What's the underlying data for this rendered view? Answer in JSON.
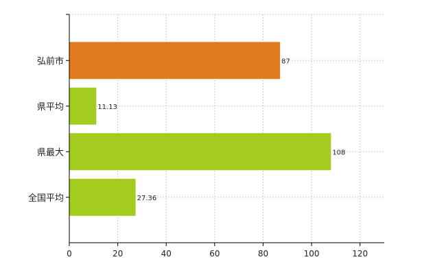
{
  "chart_data": {
    "type": "bar",
    "orientation": "horizontal",
    "categories": [
      "弘前市",
      "県平均",
      "県最大",
      "全国平均"
    ],
    "values": [
      87,
      11.13,
      108,
      27.36
    ],
    "value_labels": [
      "87",
      "11.13",
      "108",
      "27.36"
    ],
    "bar_colors": [
      "#e07a1f",
      "#a3cc1e",
      "#a3cc1e",
      "#a3cc1e"
    ],
    "title": "",
    "xlabel": "",
    "ylabel": "",
    "xlim": [
      0,
      130
    ],
    "x_ticks": [
      0,
      20,
      40,
      60,
      80,
      100,
      120
    ],
    "grid": true,
    "grid_style": "dashed",
    "legend": "none"
  }
}
